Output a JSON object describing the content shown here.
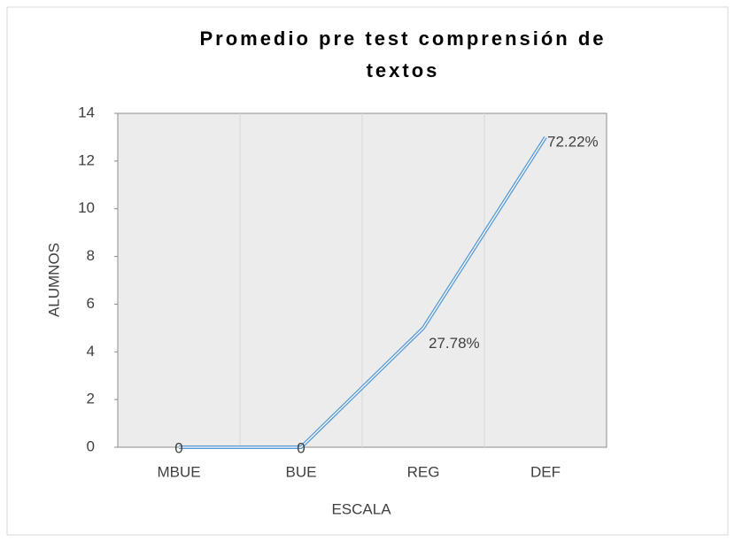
{
  "chart_data": {
    "type": "line",
    "title": [
      "Promedio pre  test comprensión de",
      "textos"
    ],
    "categories": [
      "MBUE",
      "BUE",
      "REG",
      "DEF"
    ],
    "series": [
      {
        "name": "ALUMNOS",
        "color": "#5b9bd5",
        "values": [
          0,
          0,
          5,
          13
        ]
      }
    ],
    "annotations": [
      "0",
      "0",
      "27.78%",
      "72.22%"
    ],
    "ylim": [
      0,
      14
    ],
    "yticks": [
      0,
      2,
      4,
      6,
      8,
      10,
      12,
      14
    ],
    "xlabel": "ESCALA",
    "ylabel": "ALUMNOS",
    "grid": true
  }
}
